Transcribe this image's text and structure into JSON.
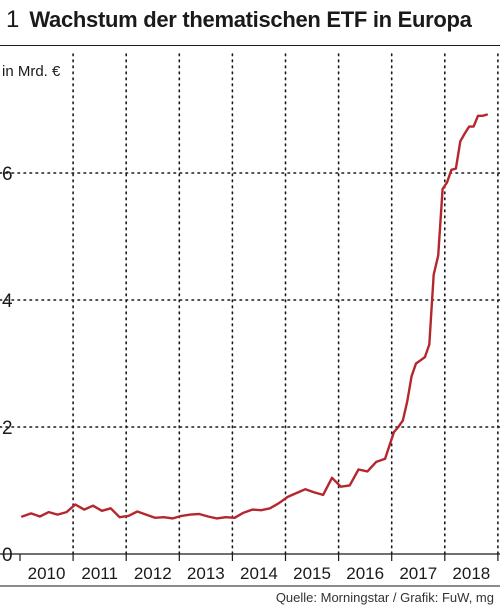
{
  "figure": {
    "number": "1",
    "title": "Wachstum der thematischen ETF in Europa",
    "source": "Quelle: Morningstar / Grafik: FuW, mg"
  },
  "chart_data": {
    "type": "line",
    "title": "Wachstum der thematischen ETF in Europa",
    "ylabel": "in Mrd. €",
    "xlabel": "",
    "ylim": [
      0,
      7
    ],
    "y_ticks": [
      0,
      2,
      4,
      6
    ],
    "y_tick_labels": [
      "0",
      "2",
      "4",
      "6"
    ],
    "x_categories": [
      "2010",
      "2011",
      "2012",
      "2013",
      "2014",
      "2015",
      "2016",
      "2017",
      "2018"
    ],
    "grid": "dotted vertical at year boundaries, dotted horizontal at 2, 4, 6",
    "colors": {
      "line": "#b5272d",
      "grid": "#1a1a1a",
      "axis": "#1a1a1a"
    },
    "series": [
      {
        "x": [
          "2010-01",
          "2010-03",
          "2010-05",
          "2010-07",
          "2010-09",
          "2010-11",
          "2011-01",
          "2011-03",
          "2011-05",
          "2011-07",
          "2011-09",
          "2011-11",
          "2012-01",
          "2012-03",
          "2012-05",
          "2012-07",
          "2012-09",
          "2012-11",
          "2013-01",
          "2013-03",
          "2013-05",
          "2013-07",
          "2013-09",
          "2013-11",
          "2014-01",
          "2014-03",
          "2014-05",
          "2014-07",
          "2014-09",
          "2014-11",
          "2015-01",
          "2015-03",
          "2015-05",
          "2015-07",
          "2015-09",
          "2015-11",
          "2016-01",
          "2016-03",
          "2016-05",
          "2016-07",
          "2016-09",
          "2016-11",
          "2017-01",
          "2017-02",
          "2017-03",
          "2017-04",
          "2017-05",
          "2017-06",
          "2017-07",
          "2017-08",
          "2017-09",
          "2017-10",
          "2017-11",
          "2017-12",
          "2018-01",
          "2018-02",
          "2018-03",
          "2018-04",
          "2018-05",
          "2018-06",
          "2018-07",
          "2018-08",
          "2018-09",
          "2018-10"
        ],
        "values": [
          0.59,
          0.64,
          0.59,
          0.66,
          0.62,
          0.66,
          0.78,
          0.7,
          0.76,
          0.68,
          0.72,
          0.58,
          0.6,
          0.67,
          0.62,
          0.57,
          0.58,
          0.56,
          0.6,
          0.62,
          0.63,
          0.59,
          0.56,
          0.58,
          0.57,
          0.65,
          0.7,
          0.69,
          0.72,
          0.8,
          0.9,
          0.96,
          1.02,
          0.97,
          0.93,
          1.2,
          1.06,
          1.08,
          1.33,
          1.3,
          1.45,
          1.5,
          1.92,
          2.0,
          2.1,
          2.4,
          2.8,
          3.0,
          3.05,
          3.1,
          3.3,
          4.4,
          4.7,
          5.75,
          5.85,
          6.05,
          6.07,
          6.5,
          6.62,
          6.73,
          6.73,
          6.9,
          6.9,
          6.92
        ]
      }
    ]
  }
}
